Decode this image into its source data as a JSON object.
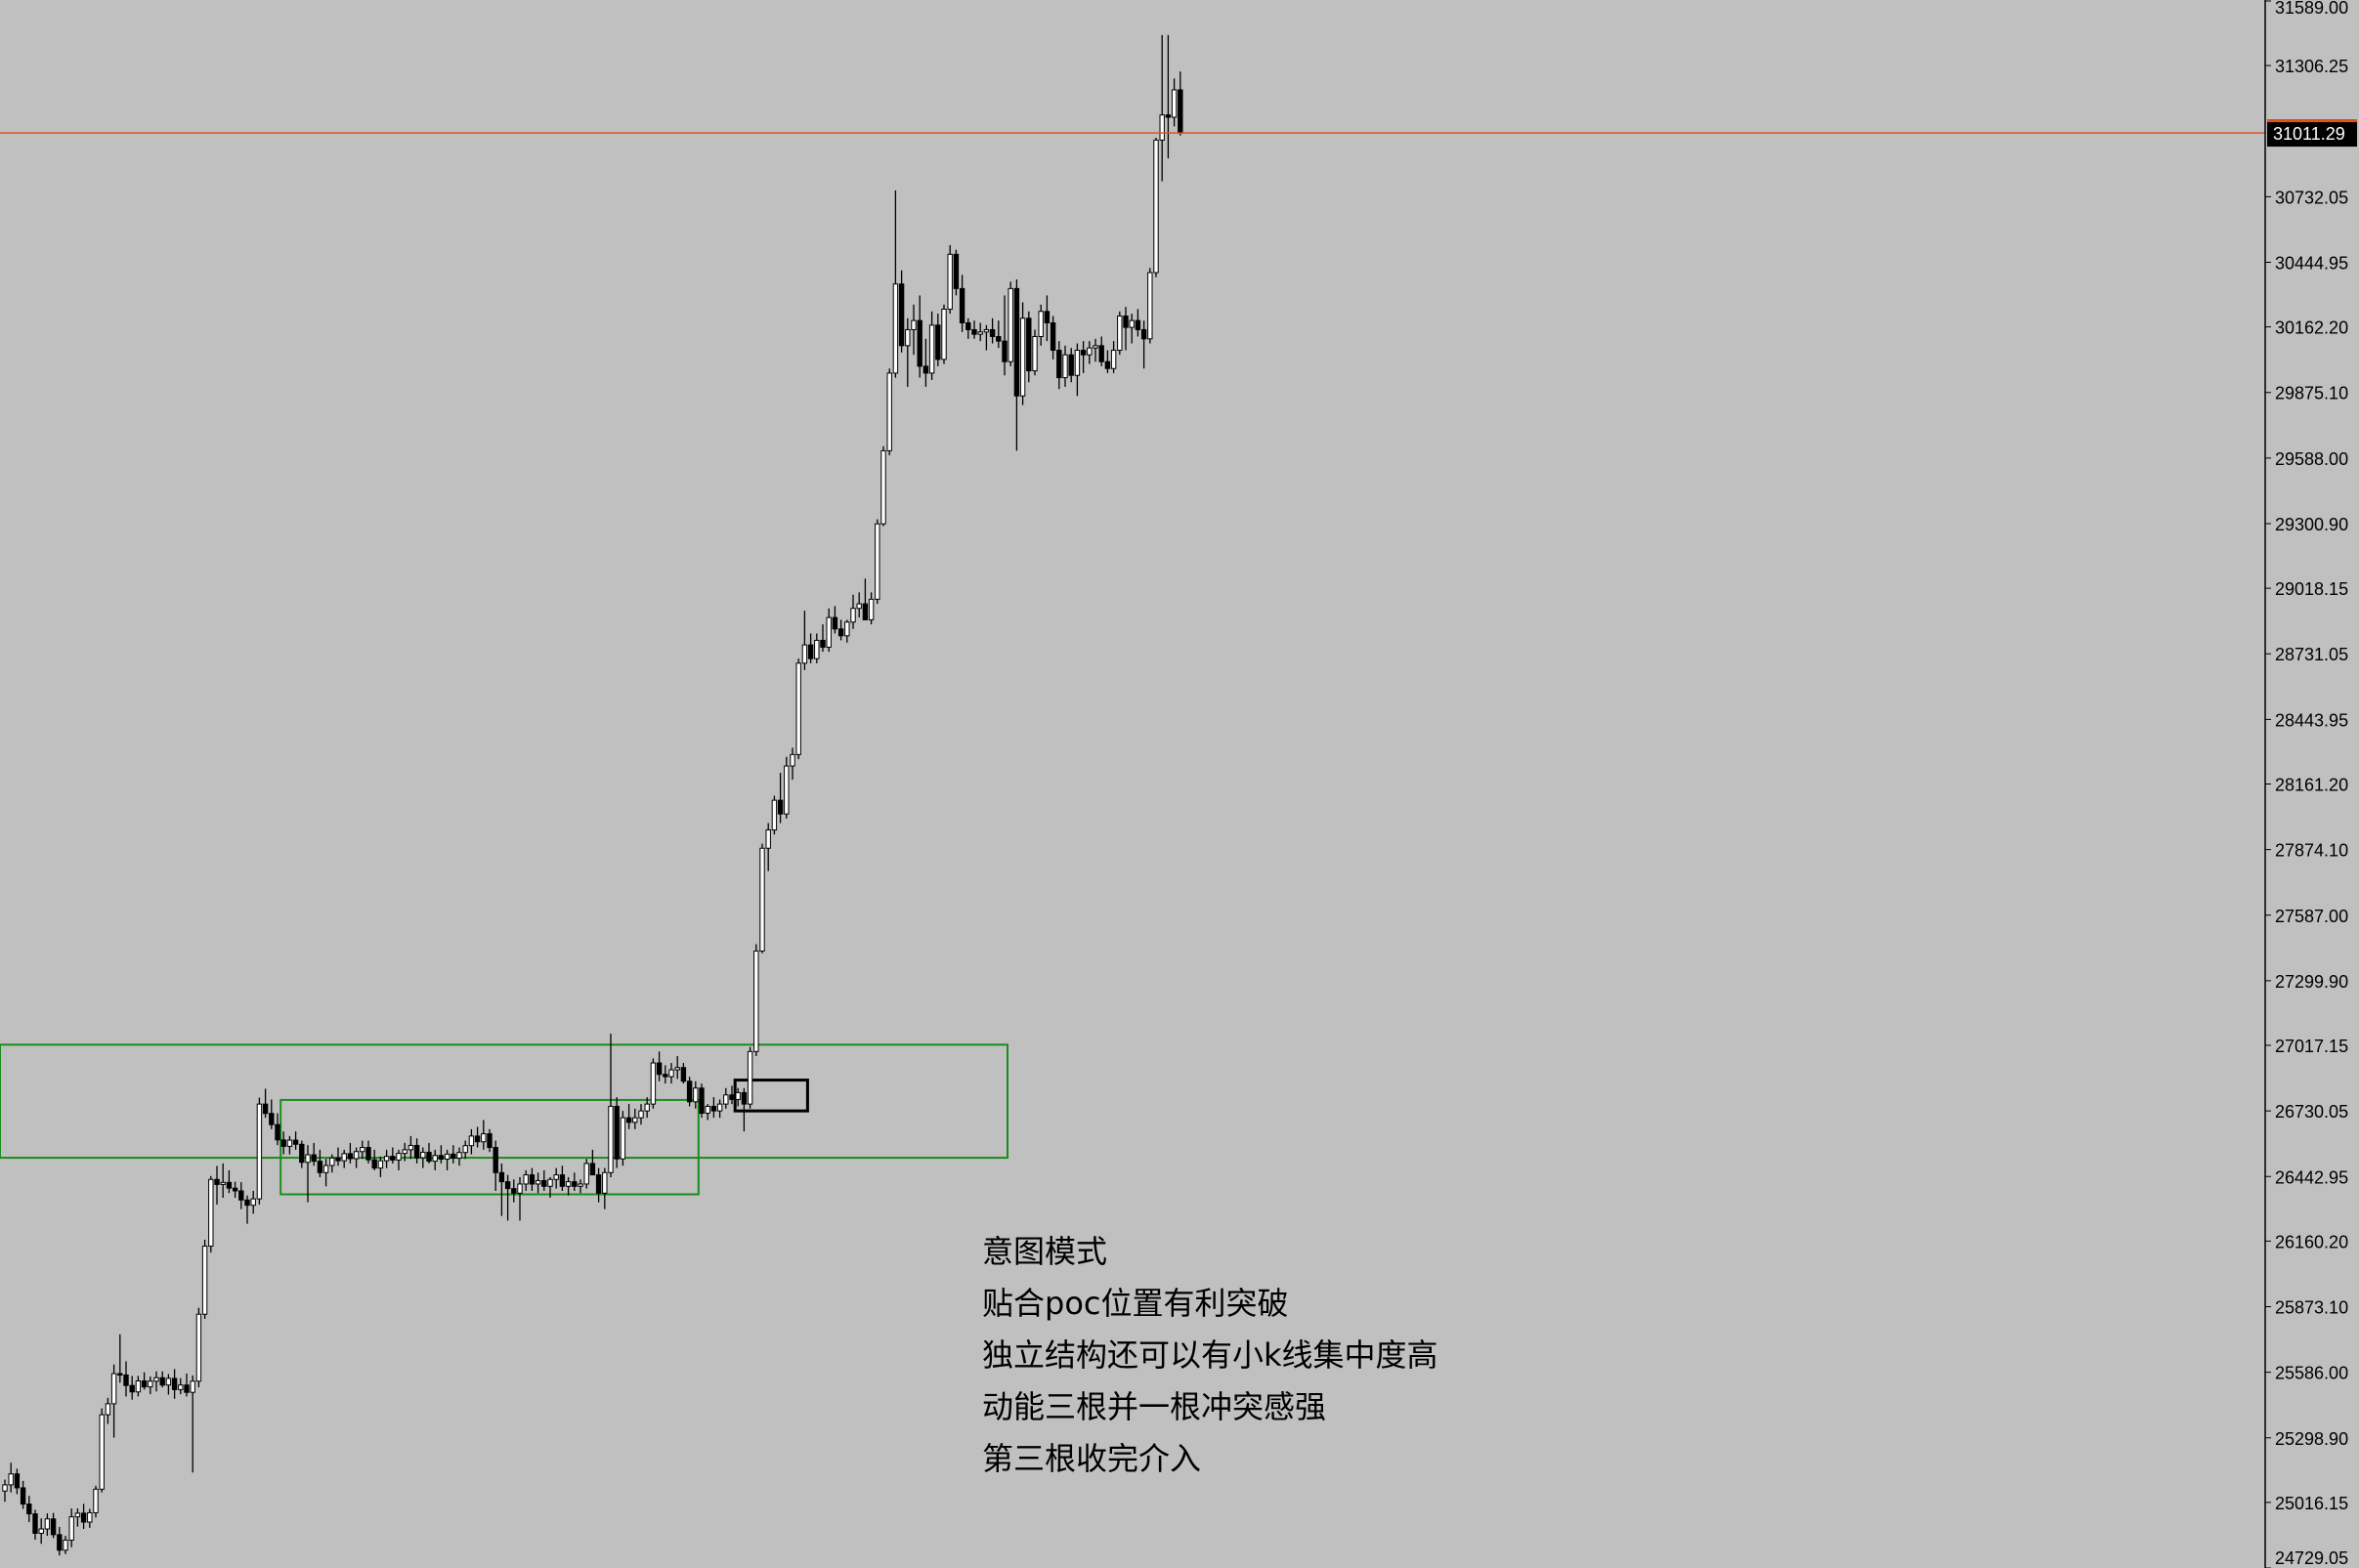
{
  "chart_data": {
    "type": "candlestick",
    "title": "",
    "xlabel": "",
    "ylabel": "",
    "ylim": [
      24729.05,
      31589.0
    ],
    "y_ticks": [
      "31589.00",
      "31306.25",
      "30732.05",
      "30444.95",
      "30162.20",
      "29875.10",
      "29588.00",
      "29300.90",
      "29018.15",
      "28731.05",
      "28443.95",
      "28161.20",
      "27874.10",
      "27587.00",
      "27299.90",
      "27017.15",
      "26730.05",
      "26442.95",
      "26160.20",
      "25873.10",
      "25586.00",
      "25298.90",
      "25016.15",
      "24729.05"
    ],
    "current_price": {
      "label": "31011.29",
      "value": 31011.29
    },
    "candles": [
      [
        25066,
        25116,
        25019,
        25093
      ],
      [
        25093,
        25190,
        25060,
        25141
      ],
      [
        25141,
        25164,
        25052,
        25080
      ],
      [
        25080,
        25110,
        24988,
        25009
      ],
      [
        25009,
        25045,
        24930,
        24966
      ],
      [
        24966,
        24984,
        24853,
        24881
      ],
      [
        24881,
        24946,
        24835,
        24900
      ],
      [
        24900,
        24968,
        24870,
        24944
      ],
      [
        24944,
        24970,
        24860,
        24875
      ],
      [
        24875,
        24909,
        24784,
        24807
      ],
      [
        24807,
        24870,
        24790,
        24851
      ],
      [
        24851,
        24990,
        24820,
        24953
      ],
      [
        24953,
        24990,
        24910,
        24969
      ],
      [
        24969,
        25010,
        24900,
        24930
      ],
      [
        24930,
        24988,
        24905,
        24971
      ],
      [
        24971,
        25089,
        24950,
        25074
      ],
      [
        25074,
        25428,
        25060,
        25400
      ],
      [
        25400,
        25474,
        25360,
        25448
      ],
      [
        25448,
        25620,
        25300,
        25580
      ],
      [
        25580,
        25752,
        25540,
        25574
      ],
      [
        25574,
        25634,
        25480,
        25528
      ],
      [
        25528,
        25570,
        25466,
        25500
      ],
      [
        25500,
        25570,
        25480,
        25548
      ],
      [
        25548,
        25586,
        25510,
        25522
      ],
      [
        25522,
        25568,
        25490,
        25547
      ],
      [
        25547,
        25590,
        25502,
        25562
      ],
      [
        25562,
        25590,
        25520,
        25530
      ],
      [
        25530,
        25578,
        25488,
        25559
      ],
      [
        25559,
        25600,
        25470,
        25510
      ],
      [
        25510,
        25560,
        25490,
        25530
      ],
      [
        25530,
        25580,
        25480,
        25498
      ],
      [
        25498,
        25572,
        25147,
        25547
      ],
      [
        25547,
        25868,
        25520,
        25840
      ],
      [
        25840,
        26166,
        25820,
        26138
      ],
      [
        26138,
        26445,
        26110,
        26430
      ],
      [
        26430,
        26489,
        26320,
        26408
      ],
      [
        26408,
        26500,
        26350,
        26417
      ],
      [
        26417,
        26470,
        26370,
        26392
      ],
      [
        26392,
        26420,
        26350,
        26380
      ],
      [
        26380,
        26418,
        26300,
        26340
      ],
      [
        26340,
        26360,
        26236,
        26317
      ],
      [
        26317,
        26380,
        26280,
        26345
      ],
      [
        26345,
        26788,
        26320,
        26760
      ],
      [
        26760,
        26827,
        26700,
        26719
      ],
      [
        26719,
        26780,
        26650,
        26670
      ],
      [
        26670,
        26720,
        26580,
        26603
      ],
      [
        26603,
        26640,
        26540,
        26575
      ],
      [
        26575,
        26620,
        26540,
        26602
      ],
      [
        26602,
        26640,
        26560,
        26584
      ],
      [
        26584,
        26600,
        26480,
        26505
      ],
      [
        26505,
        26580,
        26330,
        26538
      ],
      [
        26538,
        26590,
        26490,
        26510
      ],
      [
        26510,
        26560,
        26440,
        26460
      ],
      [
        26460,
        26520,
        26400,
        26491
      ],
      [
        26491,
        26540,
        26460,
        26524
      ],
      [
        26524,
        26570,
        26490,
        26512
      ],
      [
        26512,
        26560,
        26480,
        26543
      ],
      [
        26543,
        26590,
        26500,
        26521
      ],
      [
        26521,
        26570,
        26480,
        26552
      ],
      [
        26552,
        26600,
        26520,
        26570
      ],
      [
        26570,
        26600,
        26500,
        26516
      ],
      [
        26516,
        26560,
        26470,
        26480
      ],
      [
        26480,
        26530,
        26440,
        26512
      ],
      [
        26512,
        26560,
        26480,
        26531
      ],
      [
        26531,
        26570,
        26500,
        26515
      ],
      [
        26515,
        26560,
        26470,
        26544
      ],
      [
        26544,
        26590,
        26510,
        26560
      ],
      [
        26560,
        26620,
        26520,
        26579
      ],
      [
        26579,
        26610,
        26500,
        26525
      ],
      [
        26525,
        26570,
        26480,
        26549
      ],
      [
        26549,
        26590,
        26500,
        26510
      ],
      [
        26510,
        26560,
        26470,
        26535
      ],
      [
        26535,
        26580,
        26500,
        26519
      ],
      [
        26519,
        26560,
        26470,
        26541
      ],
      [
        26541,
        26580,
        26500,
        26523
      ],
      [
        26523,
        26570,
        26490,
        26548
      ],
      [
        26548,
        26600,
        26520,
        26578
      ],
      [
        26578,
        26650,
        26540,
        26620
      ],
      [
        26620,
        26660,
        26570,
        26595
      ],
      [
        26595,
        26690,
        26560,
        26630
      ],
      [
        26630,
        26650,
        26550,
        26570
      ],
      [
        26570,
        26600,
        26380,
        26460
      ],
      [
        26460,
        26500,
        26270,
        26420
      ],
      [
        26420,
        26450,
        26250,
        26390
      ],
      [
        26390,
        26430,
        26330,
        26370
      ],
      [
        26370,
        26440,
        26250,
        26410
      ],
      [
        26410,
        26470,
        26380,
        26450
      ],
      [
        26450,
        26480,
        26380,
        26410
      ],
      [
        26410,
        26460,
        26370,
        26425
      ],
      [
        26425,
        26470,
        26380,
        26400
      ],
      [
        26400,
        26440,
        26350,
        26430
      ],
      [
        26430,
        26480,
        26390,
        26450
      ],
      [
        26450,
        26490,
        26380,
        26400
      ],
      [
        26400,
        26440,
        26360,
        26420
      ],
      [
        26420,
        26460,
        26380,
        26400
      ],
      [
        26400,
        26430,
        26370,
        26410
      ],
      [
        26410,
        26520,
        26390,
        26500
      ],
      [
        26500,
        26560,
        26470,
        26450
      ],
      [
        26450,
        26480,
        26330,
        26370
      ],
      [
        26370,
        26480,
        26300,
        26460
      ],
      [
        26460,
        27068,
        26440,
        26750
      ],
      [
        26750,
        26790,
        26480,
        26520
      ],
      [
        26520,
        26730,
        26490,
        26700
      ],
      [
        26700,
        26760,
        26650,
        26680
      ],
      [
        26680,
        26740,
        26650,
        26700
      ],
      [
        26700,
        26760,
        26670,
        26730
      ],
      [
        26730,
        26790,
        26700,
        26760
      ],
      [
        26760,
        26960,
        26740,
        26940
      ],
      [
        26940,
        26990,
        26860,
        26890
      ],
      [
        26890,
        26930,
        26850,
        26880
      ],
      [
        26880,
        26940,
        26850,
        26910
      ],
      [
        26910,
        26970,
        26870,
        26920
      ],
      [
        26920,
        26940,
        26850,
        26860
      ],
      [
        26860,
        26880,
        26750,
        26770
      ],
      [
        26770,
        26860,
        26740,
        26830
      ],
      [
        26830,
        26850,
        26700,
        26720
      ],
      [
        26720,
        26760,
        26690,
        26750
      ],
      [
        26750,
        26790,
        26700,
        26730
      ],
      [
        26730,
        26780,
        26700,
        26760
      ],
      [
        26760,
        26830,
        26740,
        26800
      ],
      [
        26800,
        26840,
        26760,
        26780
      ],
      [
        26780,
        26830,
        26750,
        26810
      ],
      [
        26810,
        26830,
        26640,
        26760
      ],
      [
        26760,
        27010,
        26740,
        26990
      ],
      [
        26990,
        27460,
        26970,
        27430
      ],
      [
        27430,
        27900,
        27420,
        27880
      ],
      [
        27880,
        27990,
        27780,
        27960
      ],
      [
        27960,
        28110,
        27940,
        28090
      ],
      [
        28090,
        28210,
        27990,
        28030
      ],
      [
        28030,
        28280,
        28010,
        28240
      ],
      [
        28240,
        28320,
        28180,
        28290
      ],
      [
        28290,
        28710,
        28270,
        28690
      ],
      [
        28690,
        28920,
        28660,
        28770
      ],
      [
        28770,
        28820,
        28690,
        28710
      ],
      [
        28710,
        28820,
        28690,
        28790
      ],
      [
        28790,
        28860,
        28740,
        28760
      ],
      [
        28760,
        28930,
        28740,
        28890
      ],
      [
        28890,
        28940,
        28820,
        28840
      ],
      [
        28840,
        28880,
        28790,
        28810
      ],
      [
        28810,
        28880,
        28780,
        28870
      ],
      [
        28870,
        28990,
        28840,
        28930
      ],
      [
        28930,
        29000,
        28890,
        28950
      ],
      [
        28950,
        29060,
        28900,
        28880
      ],
      [
        28880,
        29000,
        28860,
        28970
      ],
      [
        28970,
        29320,
        28950,
        29300
      ],
      [
        29300,
        29640,
        29290,
        29620
      ],
      [
        29620,
        29980,
        29600,
        29960
      ],
      [
        29960,
        30760,
        29940,
        30350
      ],
      [
        30350,
        30410,
        30050,
        30080
      ],
      [
        30080,
        30200,
        29900,
        30150
      ],
      [
        30150,
        30260,
        30040,
        30190
      ],
      [
        30190,
        30300,
        29940,
        29990
      ],
      [
        29990,
        30110,
        29900,
        29960
      ],
      [
        29960,
        30230,
        29930,
        30170
      ],
      [
        30170,
        30220,
        29990,
        30020
      ],
      [
        30020,
        30260,
        30000,
        30240
      ],
      [
        30240,
        30520,
        30220,
        30480
      ],
      [
        30480,
        30500,
        30300,
        30330
      ],
      [
        30330,
        30390,
        30140,
        30180
      ],
      [
        30180,
        30200,
        30110,
        30150
      ],
      [
        30150,
        30190,
        30110,
        30130
      ],
      [
        30130,
        30180,
        30100,
        30140
      ],
      [
        30140,
        30170,
        30060,
        30150
      ],
      [
        30150,
        30200,
        30090,
        30120
      ],
      [
        30120,
        30190,
        30070,
        30100
      ],
      [
        30100,
        30300,
        29950,
        30010
      ],
      [
        30010,
        30360,
        29990,
        30330
      ],
      [
        30330,
        30370,
        29620,
        29860
      ],
      [
        29860,
        30270,
        29820,
        30200
      ],
      [
        30200,
        30230,
        29920,
        29970
      ],
      [
        29970,
        30150,
        29950,
        30120
      ],
      [
        30120,
        30260,
        30080,
        30230
      ],
      [
        30230,
        30300,
        30100,
        30180
      ],
      [
        30180,
        30210,
        30020,
        30060
      ],
      [
        30060,
        30100,
        29890,
        29940
      ],
      [
        29940,
        30080,
        29900,
        30040
      ],
      [
        30040,
        30070,
        29920,
        29950
      ],
      [
        29950,
        30090,
        29860,
        30060
      ],
      [
        30060,
        30100,
        29960,
        30040
      ],
      [
        30040,
        30100,
        30000,
        30070
      ],
      [
        30070,
        30110,
        30010,
        30080
      ],
      [
        30080,
        30120,
        29990,
        30010
      ],
      [
        30010,
        30060,
        29960,
        29980
      ],
      [
        29980,
        30100,
        29960,
        30060
      ],
      [
        30060,
        30230,
        30040,
        30210
      ],
      [
        30210,
        30250,
        30060,
        30160
      ],
      [
        30160,
        30220,
        30090,
        30190
      ],
      [
        30190,
        30240,
        30120,
        30150
      ],
      [
        30150,
        30190,
        29980,
        30110
      ],
      [
        30110,
        30420,
        30090,
        30400
      ],
      [
        30400,
        30990,
        30380,
        30980
      ],
      [
        30980,
        31440,
        30800,
        31090
      ],
      [
        31090,
        31440,
        30900,
        31080
      ],
      [
        31080,
        31250,
        31040,
        31200
      ],
      [
        31200,
        31280,
        31000,
        31011.29
      ]
    ],
    "zones": [
      {
        "name": "upper-range-box",
        "color": "#1a8c1a",
        "first_candle": -10,
        "last_candle": 165,
        "high": 27020,
        "low": 26525
      },
      {
        "name": "consolidation-box",
        "color": "#1a8c1a",
        "first_candle": 46,
        "last_candle": 114,
        "high": 26778,
        "low": 26365
      },
      {
        "name": "breakout-box",
        "color": "#000000",
        "first_candle": 121,
        "last_candle": 132,
        "high": 26865,
        "low": 26730
      }
    ],
    "annotations": [
      "意图模式",
      "贴合poc位置有利突破",
      "独立结构还可以有小k线集中度高",
      "动能三根并一根冲突感强",
      "第三根收完介入"
    ],
    "colors": {
      "background": "#c0c0c0",
      "bull_fill": "#ffffff",
      "bear_fill": "#000000",
      "candle_outline": "#000000",
      "price_line": "#e8501a",
      "zone_green": "#1a8c1a"
    }
  }
}
